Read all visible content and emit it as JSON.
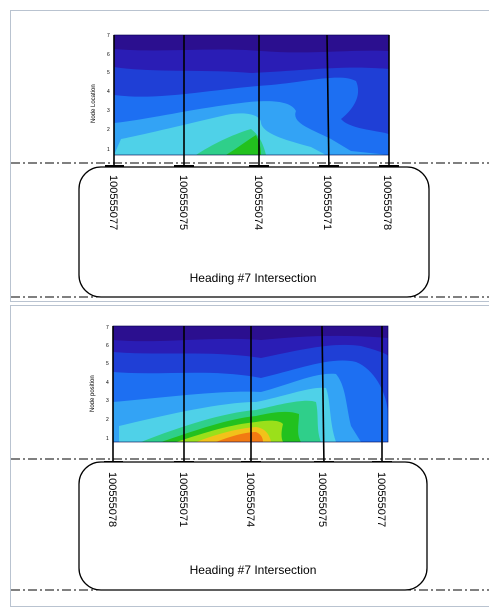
{
  "panels": [
    {
      "y_axis_label": "Node Location",
      "y_ticks": [
        "1",
        "2",
        "3",
        "4",
        "5",
        "6",
        "7"
      ],
      "gauges": [
        "100555077",
        "100555075",
        "100555074",
        "100555071",
        "100555078"
      ],
      "title": "Heading #7 Intersection"
    },
    {
      "y_axis_label": "Node position",
      "y_ticks": [
        "1",
        "2",
        "3",
        "4",
        "5",
        "6",
        "7"
      ],
      "gauges": [
        "100555078",
        "100555071",
        "100555074",
        "100555075",
        "100555077"
      ],
      "title": "Heading #7 Intersection"
    }
  ],
  "colors": {
    "contour_bands": [
      "#2b0f8f",
      "#2a1db5",
      "#1f3fd6",
      "#1d6ff2",
      "#33a3f5",
      "#4fd1e8",
      "#2fcf8a",
      "#22c11e",
      "#9be01a",
      "#f2c21a",
      "#f27a12"
    ],
    "border": "#b9c3d0",
    "line": "#000000"
  }
}
